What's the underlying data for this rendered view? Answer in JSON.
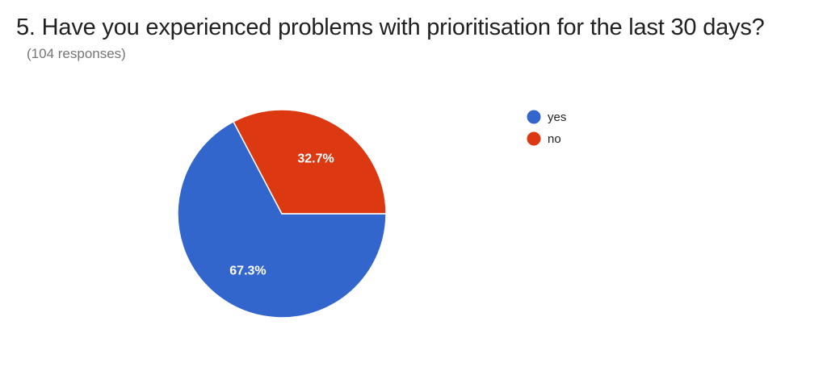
{
  "form": {
    "question_title": "5. Have you experienced problems with prioritisation for the last 30 days?",
    "responses_text": "(104 responses)"
  },
  "chart_data": {
    "type": "pie",
    "title": "5. Have you experienced problems with prioritisation for the last 30 days?",
    "subtitle": "(104 responses)",
    "legend_position": "right",
    "slices": [
      {
        "label": "yes",
        "value": 67.3,
        "display": "67.3%",
        "color": "#3366cc"
      },
      {
        "label": "no",
        "value": 32.7,
        "display": "32.7%",
        "color": "#dc3912"
      }
    ]
  }
}
